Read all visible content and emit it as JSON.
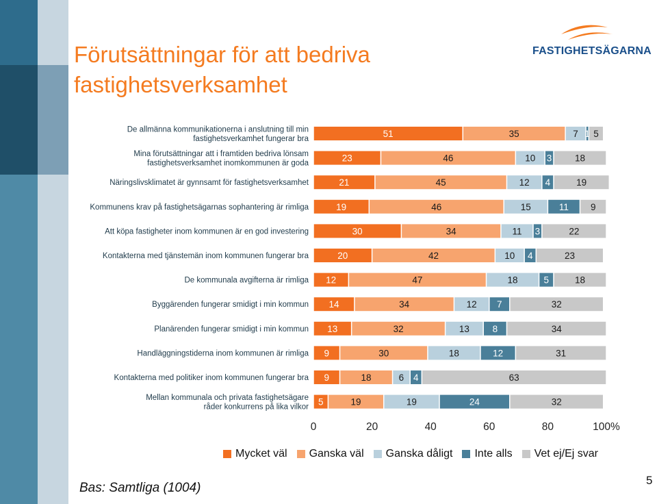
{
  "page": {
    "title": "Förutsättningar för att bedriva fastighetsverksamhet",
    "logo_text": "FASTIGHETSÄGARNA",
    "base_note": "Bas: Samtliga (1004)",
    "page_number": "5"
  },
  "chart_data": {
    "type": "bar",
    "orientation": "horizontal-stacked-100",
    "categories": [
      "De allmänna kommunikationerna i anslutning till min fastighetsverkamhet fungerar bra",
      "Mina förutsättningar att i framtiden bedriva lönsam fastighetsverksamhet inomkommunen är goda",
      "Näringslivsklimatet är gynnsamt för fastighetsverksamhet",
      "Kommunens krav på fastighetsägarnas sophantering är rimliga",
      "Att köpa fastigheter inom kommunen är en god investering",
      "Kontakterna med tjänstemän inom kommunen fungerar bra",
      "De kommunala avgifterna är rimliga",
      "Byggärenden fungerar smidigt i min kommun",
      "Planärenden fungerar smidigt i min kommun",
      "Handläggningstiderna inom kommunen är rimliga",
      "Kontakterna med politiker inom kommunen fungerar bra",
      "Mellan kommunala och privata fastighetsägare råder konkurrens på lika vilkor"
    ],
    "category_lines": [
      [
        "De allmänna kommunikationerna i anslutning till min",
        "fastighetsverkamhet fungerar bra"
      ],
      [
        "Mina förutsättningar att i framtiden bedriva lönsam",
        "fastighetsverksamhet inomkommunen är goda"
      ],
      [
        "Näringslivsklimatet är gynnsamt för fastighetsverksamhet"
      ],
      [
        "Kommunens krav på fastighetsägarnas sophantering är rimliga"
      ],
      [
        "Att köpa fastigheter inom kommunen är en god investering"
      ],
      [
        "Kontakterna med tjänstemän inom kommunen fungerar bra"
      ],
      [
        "De kommunala avgifterna är rimliga"
      ],
      [
        "Byggärenden fungerar smidigt i min kommun"
      ],
      [
        "Planärenden fungerar smidigt i min kommun"
      ],
      [
        "Handläggningstiderna inom kommunen är rimliga"
      ],
      [
        "Kontakterna med politiker inom kommunen fungerar bra"
      ],
      [
        "Mellan kommunala och privata fastighetsägare",
        "råder konkurrens på lika vilkor"
      ]
    ],
    "series": [
      {
        "name": "Mycket väl",
        "color": "#f26f21",
        "values": [
          51,
          23,
          21,
          19,
          30,
          20,
          12,
          14,
          13,
          9,
          9,
          5
        ]
      },
      {
        "name": "Ganska väl",
        "color": "#f7a46e",
        "values": [
          35,
          46,
          45,
          46,
          34,
          42,
          47,
          34,
          32,
          30,
          18,
          19
        ]
      },
      {
        "name": "Ganska dåligt",
        "color": "#b9d0dd",
        "values": [
          7,
          10,
          12,
          15,
          11,
          10,
          18,
          12,
          13,
          18,
          6,
          19
        ]
      },
      {
        "name": "Inte alls",
        "color": "#4a7f99",
        "values": [
          1,
          3,
          4,
          11,
          3,
          4,
          5,
          7,
          8,
          12,
          4,
          24
        ]
      },
      {
        "name": "Vet ej/Ej svar",
        "color": "#c8c8c8",
        "values": [
          5,
          18,
          19,
          9,
          22,
          23,
          18,
          32,
          34,
          31,
          63,
          32
        ]
      }
    ],
    "x_ticks": [
      "0",
      "20",
      "40",
      "60",
      "80",
      "100%"
    ],
    "xlim": [
      0,
      100
    ],
    "legend_position": "bottom",
    "grid": false
  }
}
